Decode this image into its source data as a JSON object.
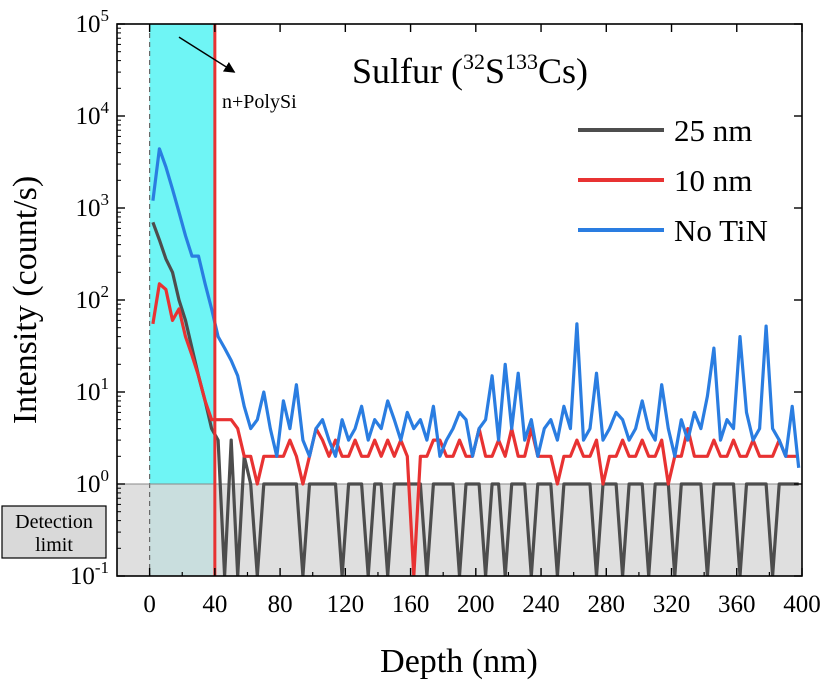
{
  "chart_data": {
    "type": "line",
    "title": {
      "main": "Sulfur (",
      "sup1": "32",
      "mid": "S",
      "sup2": "133",
      "end": "Cs)"
    },
    "xlabel": "Depth (nm)",
    "ylabel": "Intensity (count/s)",
    "xlim": [
      -20,
      400
    ],
    "ylim": [
      0.1,
      100000
    ],
    "y_scale": "log",
    "x_ticks": [
      0,
      40,
      80,
      120,
      160,
      200,
      240,
      280,
      320,
      360,
      400
    ],
    "y_ticks": [
      {
        "value": 0.1,
        "base": "10",
        "exp": "-1"
      },
      {
        "value": 1,
        "base": "10",
        "exp": "0"
      },
      {
        "value": 10,
        "base": "10",
        "exp": "1"
      },
      {
        "value": 100,
        "base": "10",
        "exp": "2"
      },
      {
        "value": 1000,
        "base": "10",
        "exp": "3"
      },
      {
        "value": 10000,
        "base": "10",
        "exp": "4"
      },
      {
        "value": 100000,
        "base": "10",
        "exp": "5"
      }
    ],
    "legend_position": "top-right",
    "highlight_region": {
      "x": [
        0,
        40
      ],
      "color": "#6ff5f5"
    },
    "boundary_line": {
      "x": 40,
      "color": "#e83232"
    },
    "detection_limit": {
      "y": [
        0.1,
        1
      ],
      "color": "#d9d9d9",
      "label_line1": "Detection",
      "label_line2": "limit"
    },
    "annotation": {
      "text": "n+PolySi",
      "arrow_from": [
        18,
        72000
      ],
      "arrow_to": [
        52,
        30000
      ]
    },
    "series": [
      {
        "name": "25 nm",
        "color": "#4d4d4d",
        "x": [
          2,
          6,
          10,
          14,
          18,
          22,
          26,
          30,
          34,
          38,
          42,
          46,
          50,
          54,
          58,
          62,
          66,
          70,
          74,
          78,
          82,
          86,
          90,
          94,
          98,
          102,
          106,
          110,
          114,
          118,
          122,
          126,
          130,
          134,
          138,
          142,
          146,
          150,
          154,
          158,
          162,
          166,
          170,
          174,
          178,
          182,
          186,
          190,
          194,
          198,
          202,
          206,
          210,
          214,
          218,
          222,
          226,
          230,
          234,
          238,
          242,
          246,
          250,
          254,
          258,
          262,
          266,
          270,
          274,
          278,
          282,
          286,
          290,
          294,
          298,
          302,
          306,
          310,
          314,
          318,
          322,
          326,
          330,
          334,
          338,
          342,
          346,
          350,
          354,
          358,
          362,
          366,
          370,
          374,
          378,
          382,
          386,
          390,
          394,
          398
        ],
        "y": [
          700,
          450,
          280,
          200,
          100,
          60,
          30,
          15,
          8,
          4,
          3,
          0.1,
          3,
          0.1,
          2,
          1,
          0.1,
          1,
          1,
          1,
          1,
          1,
          1,
          0.1,
          1,
          1,
          1,
          1,
          1,
          0.1,
          1,
          1,
          1,
          0.1,
          1,
          1,
          0.1,
          1,
          1,
          1,
          1,
          1,
          0.1,
          1,
          1,
          1,
          1,
          0.1,
          1,
          1,
          1,
          0.1,
          1,
          1,
          0.1,
          1,
          1,
          1,
          0.1,
          1,
          1,
          1,
          0.1,
          1,
          1,
          1,
          1,
          1,
          0.1,
          1,
          1,
          1,
          0.1,
          1,
          1,
          1,
          0.1,
          1,
          1,
          1,
          0.1,
          1,
          1,
          1,
          1,
          0.1,
          1,
          1,
          1,
          1,
          0.1,
          1,
          1,
          1,
          1,
          0.1,
          1,
          1,
          1,
          1
        ]
      },
      {
        "name": "10 nm",
        "color": "#e83232",
        "x": [
          2,
          6,
          10,
          14,
          18,
          22,
          26,
          30,
          34,
          38,
          42,
          46,
          50,
          54,
          58,
          62,
          66,
          70,
          74,
          78,
          82,
          86,
          90,
          94,
          98,
          102,
          106,
          110,
          114,
          118,
          122,
          126,
          130,
          134,
          138,
          142,
          146,
          150,
          154,
          158,
          162,
          166,
          170,
          174,
          178,
          182,
          186,
          190,
          194,
          198,
          202,
          206,
          210,
          214,
          218,
          222,
          226,
          230,
          234,
          238,
          242,
          246,
          250,
          254,
          258,
          262,
          266,
          270,
          274,
          278,
          282,
          286,
          290,
          294,
          298,
          302,
          306,
          310,
          314,
          318,
          322,
          326,
          330,
          334,
          338,
          342,
          346,
          350,
          354,
          358,
          362,
          366,
          370,
          374,
          378,
          382,
          386,
          390,
          394,
          398
        ],
        "y": [
          55,
          150,
          130,
          60,
          80,
          40,
          25,
          15,
          8,
          5,
          5,
          5,
          5,
          4,
          2,
          2,
          1,
          2,
          2,
          2,
          2,
          3,
          2,
          1,
          2,
          4,
          3,
          2,
          3,
          2,
          2,
          3,
          2,
          2,
          3,
          2,
          3,
          2,
          3,
          2,
          0.1,
          2,
          2,
          3,
          3,
          2,
          2,
          3,
          2,
          2,
          4,
          2,
          2,
          3,
          2,
          4,
          2,
          2,
          4,
          2,
          2,
          2,
          1,
          2,
          2,
          3,
          2,
          2,
          3,
          1,
          2,
          2,
          3,
          2,
          2,
          3,
          2,
          2,
          3,
          1,
          2,
          2,
          4,
          2,
          2,
          2,
          3,
          2,
          2,
          3,
          2,
          2,
          3,
          2,
          2,
          2,
          3,
          2,
          2,
          2
        ]
      },
      {
        "name": "No TiN",
        "color": "#2a7de1",
        "x": [
          2,
          6,
          10,
          14,
          18,
          22,
          26,
          30,
          34,
          38,
          42,
          46,
          50,
          54,
          58,
          62,
          66,
          70,
          74,
          78,
          82,
          86,
          90,
          94,
          98,
          102,
          106,
          110,
          114,
          118,
          122,
          126,
          130,
          134,
          138,
          142,
          146,
          150,
          154,
          158,
          162,
          166,
          170,
          174,
          178,
          182,
          186,
          190,
          194,
          198,
          202,
          206,
          210,
          214,
          218,
          222,
          226,
          230,
          234,
          238,
          242,
          246,
          250,
          254,
          258,
          262,
          266,
          270,
          274,
          278,
          282,
          286,
          290,
          294,
          298,
          302,
          306,
          310,
          314,
          318,
          322,
          326,
          330,
          334,
          338,
          342,
          346,
          350,
          354,
          358,
          362,
          366,
          370,
          374,
          378,
          382,
          386,
          390,
          394,
          398
        ],
        "y": [
          1200,
          4400,
          2800,
          1600,
          900,
          500,
          300,
          300,
          150,
          80,
          40,
          30,
          22,
          15,
          7,
          4,
          5,
          10,
          4,
          2,
          8,
          4,
          12,
          3,
          2,
          4,
          5,
          3,
          2,
          5,
          3,
          4,
          7,
          3,
          5,
          4,
          8,
          5,
          3,
          6,
          4,
          5,
          3,
          7,
          2,
          3,
          4,
          6,
          5,
          2,
          4,
          5,
          15,
          3,
          20,
          4,
          16,
          3,
          5,
          2,
          4,
          5,
          3,
          7,
          4,
          55,
          3,
          4,
          16,
          3,
          4,
          6,
          5,
          3,
          4,
          8,
          4,
          3,
          12,
          4,
          2,
          5,
          3,
          6,
          4,
          9,
          30,
          3,
          5,
          4,
          40,
          6,
          3,
          4,
          52,
          4,
          3,
          2,
          7,
          1.5
        ]
      }
    ]
  }
}
